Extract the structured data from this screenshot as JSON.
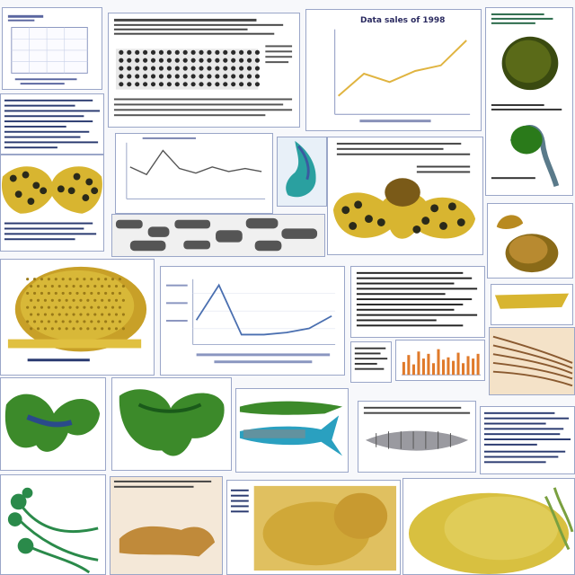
{
  "collage": {
    "chart_title": "Data sales of 1998",
    "caption_left": "",
    "caption_right": ""
  },
  "colors": {
    "frame_blue": "#6b7fbf",
    "line_gold": "#e0b440",
    "line_blue": "#4a6fb0",
    "bar_orange": "#e07a2a",
    "leaf_green": "#3c8a2a",
    "sponge_yellow": "#d8b530",
    "spot_dark": "#2a2a1a"
  },
  "chart_data": [
    {
      "type": "line",
      "title": "Data sales of 1998",
      "x": [
        1,
        2,
        3,
        4,
        5,
        6
      ],
      "series": [
        {
          "values": [
            12,
            28,
            22,
            30,
            34,
            52
          ]
        }
      ],
      "ylim": [
        0,
        60
      ],
      "grid": false
    },
    {
      "type": "line",
      "title": "",
      "x": [
        1,
        2,
        3,
        4,
        5,
        6,
        7,
        8,
        9
      ],
      "series": [
        {
          "values": [
            40,
            30,
            62,
            38,
            32,
            40,
            34,
            38,
            34
          ]
        }
      ],
      "ylim": [
        0,
        70
      ],
      "grid": true
    },
    {
      "type": "line",
      "title": "",
      "x": [
        1,
        2,
        3,
        4,
        5,
        6,
        7
      ],
      "series": [
        {
          "values": [
            22,
            56,
            8,
            8,
            10,
            14,
            26
          ]
        }
      ],
      "ylim": [
        0,
        60
      ],
      "grid": true
    },
    {
      "type": "bar",
      "title": "",
      "categories": [
        "1",
        "2",
        "3",
        "4",
        "5",
        "6",
        "7",
        "8",
        "9",
        "10",
        "11",
        "12",
        "13",
        "14",
        "15",
        "16"
      ],
      "values": [
        22,
        34,
        18,
        40,
        28,
        36,
        20,
        44,
        26,
        30,
        24,
        38,
        20,
        32,
        28,
        36
      ],
      "ylim": [
        0,
        50
      ]
    }
  ]
}
